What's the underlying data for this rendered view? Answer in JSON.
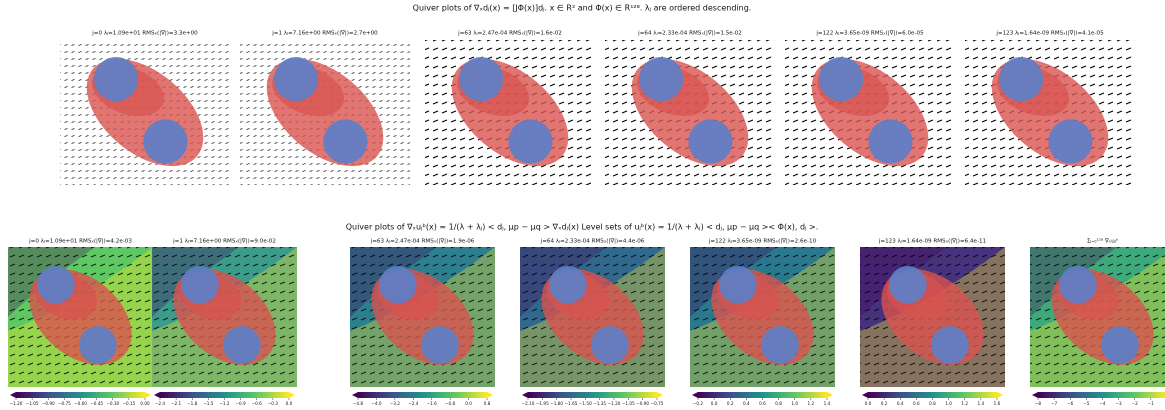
{
  "top_title": "Quiver plots of ∇ₓdⱼ(x) = [JΦ(x)]dⱼ. x ∈ R² and Φ(x) ∈ R¹²⁸. λⱼ are ordered descending.",
  "top_panels": [
    {
      "title": "j=0 λⱼ=1.09e+01 RMSₓ(|∇|)=3.3e+00"
    },
    {
      "title": "j=1 λⱼ=7.16e+00 RMSₓ(|∇|)=2.7e+00"
    },
    {
      "title": "j=63 λⱼ=2.47e-04 RMSₓ(|∇|)=1.6e-02"
    },
    {
      "title": "j=64 λⱼ=2.33e-04 RMSₓ(|∇|)=1.5e-02"
    },
    {
      "title": "j=122 λⱼ=3.65e-09 RMSₓ(|∇|)=6.0e-05"
    },
    {
      "title": "j=123 λⱼ=1.64e-09 RMSₓ(|∇|)=4.1e-05"
    }
  ],
  "bottom_title": "Quiver plots of ∇ₓuⱼᵇ(x) = 1/(λ + λⱼ) < dⱼ, μp − μq > ∇ₓdⱼ(x) Level sets of uⱼᵇ(x) = 1/(λ + λⱼ) < dⱼ, μp − μq >< Φ(x), dⱼ >.",
  "bottom_panels": [
    {
      "title": "j=0 λⱼ=1.09e+01 RMSₓ(|∇|)=4.2e-03",
      "colorbar": [
        "−1.20",
        "−1.05",
        "−0.90",
        "−0.75",
        "−0.60",
        "−0.45",
        "−0.30",
        "−0.15",
        "0.00"
      ]
    },
    {
      "title": "j=1 λⱼ=7.16e+00 RMSₓ(|∇|)=9.0e-02",
      "colorbar": [
        "−2.4",
        "−2.1",
        "−1.8",
        "−1.5",
        "−1.2",
        "−0.9",
        "−0.6",
        "−0.3",
        "0.0"
      ]
    },
    {
      "title": "j=63 λⱼ=2.47e-04 RMSₓ(|∇|)=1.9e-06",
      "colorbar": [
        "−4.8",
        "−4.0",
        "−3.2",
        "−2.4",
        "−1.6",
        "−0.8",
        "0.0",
        "0.8"
      ]
    },
    {
      "title": "j=64 λⱼ=2.33e-04 RMSₓ(|∇|)=4.4e-06",
      "colorbar": [
        "−2.10",
        "−1.95",
        "−1.80",
        "−1.65",
        "−1.50",
        "−1.35",
        "−1.20",
        "−1.05",
        "−0.90",
        "−0.75"
      ]
    },
    {
      "title": "j=122 λⱼ=3.65e-09 RMSₓ(|∇|)=2.6e-10",
      "colorbar": [
        "−0.2",
        "0.0",
        "0.2",
        "0.4",
        "0.6",
        "0.8",
        "1.0",
        "1.2",
        "1.4"
      ]
    },
    {
      "title": "j=123 λⱼ=1.64e-09 RMSₓ(|∇|)=6.4e-11",
      "colorbar": [
        "0.0",
        "0.2",
        "0.4",
        "0.6",
        "0.8",
        "1.0",
        "1.2",
        "1.4",
        "1.6"
      ]
    },
    {
      "title": "Σⱼ₌₀¹²⁸ ∇ₓuⱼᵇ",
      "colorbar": [
        "−8",
        "−7",
        "−6",
        "−5",
        "−4",
        "−3",
        "−2",
        "−1",
        "0"
      ]
    }
  ]
}
